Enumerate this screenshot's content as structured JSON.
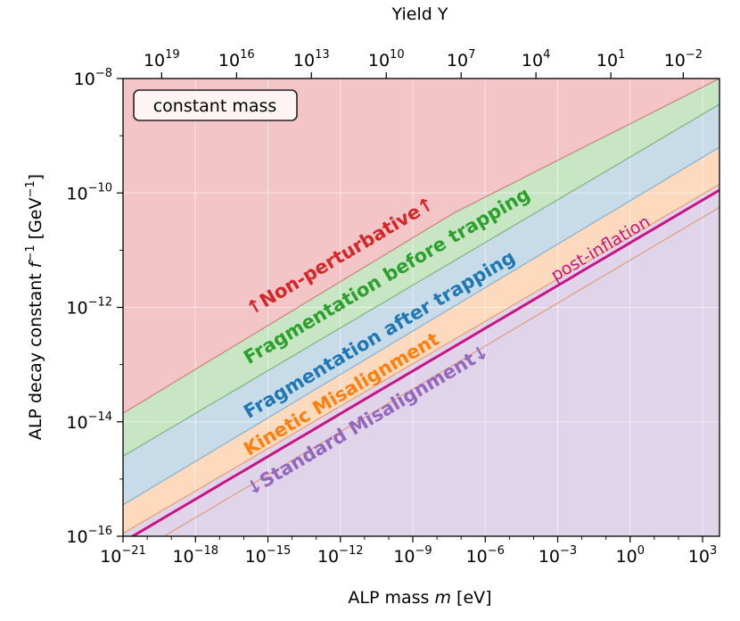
{
  "chart_data": {
    "type": "area",
    "xlabel": "ALP mass m [eV]",
    "ylabel": "ALP decay constant f⁻¹ [GeV⁻¹]",
    "top_xlabel": "Yield Y",
    "x_scale": "log",
    "y_scale": "log",
    "xlim_log10": [
      -21,
      3.7
    ],
    "ylim_log10": [
      -16,
      -8
    ],
    "x_tick_labels": [
      {
        "base": "10",
        "exp": "−21",
        "log10": -21
      },
      {
        "base": "10",
        "exp": "−18",
        "log10": -18
      },
      {
        "base": "10",
        "exp": "−15",
        "log10": -15
      },
      {
        "base": "10",
        "exp": "−12",
        "log10": -12
      },
      {
        "base": "10",
        "exp": "−9",
        "log10": -9
      },
      {
        "base": "10",
        "exp": "−6",
        "log10": -6
      },
      {
        "base": "10",
        "exp": "−3",
        "log10": -3
      },
      {
        "base": "10",
        "exp": "0",
        "log10": 0
      },
      {
        "base": "10",
        "exp": "3",
        "log10": 3
      }
    ],
    "y_tick_labels": [
      {
        "base": "10",
        "exp": "−16",
        "log10": -16
      },
      {
        "base": "10",
        "exp": "−14",
        "log10": -14
      },
      {
        "base": "10",
        "exp": "−12",
        "log10": -12
      },
      {
        "base": "10",
        "exp": "−10",
        "log10": -10
      },
      {
        "base": "10",
        "exp": "−8",
        "log10": -8
      }
    ],
    "top_tick_labels": [
      {
        "base": "10",
        "exp": "19",
        "m_log10": -19.4
      },
      {
        "base": "10",
        "exp": "16",
        "m_log10": -16.3
      },
      {
        "base": "10",
        "exp": "13",
        "m_log10": -13.2
      },
      {
        "base": "10",
        "exp": "10",
        "m_log10": -10.1
      },
      {
        "base": "10",
        "exp": "7",
        "m_log10": -7.0
      },
      {
        "base": "10",
        "exp": "4",
        "m_log10": -3.9
      },
      {
        "base": "10",
        "exp": "1",
        "m_log10": -0.8
      },
      {
        "base": "10",
        "exp": "−2",
        "m_log10": 2.2
      }
    ],
    "boundaries": [
      {
        "name": "non-perturbative",
        "points": [
          [
            -21,
            -13.85
          ],
          [
            -7.3,
            -10.35
          ],
          [
            3.7,
            -8.0
          ]
        ]
      },
      {
        "name": "frag-before",
        "points": [
          [
            -21,
            -14.6
          ],
          [
            3.7,
            -8.45
          ]
        ]
      },
      {
        "name": "frag-after",
        "points": [
          [
            -21,
            -15.45
          ],
          [
            3.7,
            -9.2
          ]
        ]
      },
      {
        "name": "kinetic",
        "points": [
          [
            -21,
            -15.95
          ],
          [
            3.7,
            -9.85
          ]
        ]
      },
      {
        "name": "post-inflation",
        "points": [
          [
            -20.6,
            -16.0
          ],
          [
            3.7,
            -9.95
          ]
        ]
      },
      {
        "name": "standard",
        "points": [
          [
            -19.3,
            -16.0
          ],
          [
            3.7,
            -10.25
          ]
        ]
      }
    ],
    "regions": [
      {
        "label": "↑Non-perturbative↑",
        "color": "#d62728",
        "fill": "#f4c5c7",
        "label_at": [
          -15.7,
          -12.15
        ]
      },
      {
        "label": "Fragmentation before trapping",
        "color": "#2ca02c",
        "fill": "#c8e5c4",
        "label_at": [
          -15.8,
          -13.0
        ]
      },
      {
        "label": "Fragmentation after trapping",
        "color": "#1f77b4",
        "fill": "#c7dbe9",
        "label_at": [
          -15.8,
          -13.95
        ]
      },
      {
        "label": "Kinetic Misalignment",
        "color": "#ff7f0e",
        "fill": "#fdd9bd",
        "label_at": [
          -15.8,
          -14.6
        ]
      },
      {
        "label": "↓Standard Misalignment↓",
        "color": "#9467bd",
        "fill": "#e0d4ea",
        "label_at": [
          -15.7,
          -15.3
        ]
      }
    ],
    "post_inflation": {
      "label": "post-inflation",
      "color": "#c71585",
      "label_at": [
        -3.1,
        -11.55
      ]
    },
    "inset_label": "constant mass"
  }
}
